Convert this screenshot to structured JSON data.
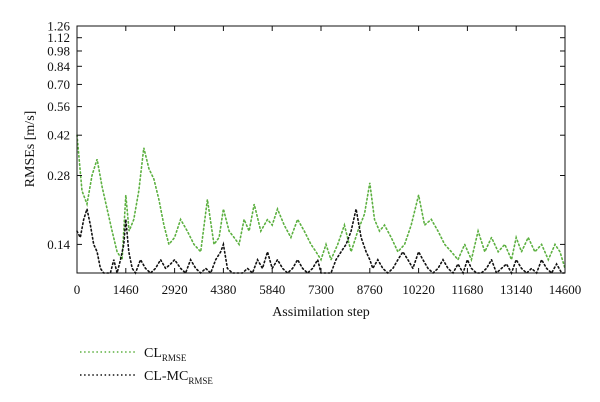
{
  "chart_data": {
    "type": "line",
    "title": "",
    "xlabel": "Assimilation step",
    "ylabel": "RMSEs [m/s]",
    "xlim": [
      0,
      14600
    ],
    "ylim": [
      0.105,
      1.26
    ],
    "yscale": "log",
    "x_ticks": [
      "0",
      "1460",
      "2920",
      "4380",
      "5840",
      "7300",
      "8760",
      "10220",
      "11680",
      "13140",
      "14600"
    ],
    "y_ticks": [
      "0.14",
      "0.28",
      "0.42",
      "0.56",
      "0.70",
      "0.84",
      "0.98",
      "1.12",
      "1.26"
    ],
    "grid": false,
    "legend_position": "bottom-left, below plot",
    "colors": {
      "cl": "#5cb040",
      "clmc": "#111111"
    },
    "series": [
      {
        "name": "CL",
        "subscript": "RMSE",
        "color": "#5cb040",
        "style": "dotted",
        "x": [
          0,
          150,
          300,
          450,
          600,
          750,
          900,
          1050,
          1200,
          1350,
          1460,
          1560,
          1700,
          1850,
          2000,
          2150,
          2300,
          2450,
          2600,
          2750,
          2920,
          3100,
          3300,
          3500,
          3700,
          3900,
          4100,
          4250,
          4380,
          4550,
          4700,
          4850,
          5000,
          5150,
          5300,
          5500,
          5700,
          5840,
          6000,
          6200,
          6400,
          6600,
          6800,
          7000,
          7150,
          7300,
          7450,
          7600,
          7800,
          8000,
          8200,
          8400,
          8600,
          8760,
          8900,
          9050,
          9200,
          9400,
          9600,
          9800,
          10000,
          10220,
          10400,
          10600,
          10800,
          11000,
          11200,
          11400,
          11600,
          11800,
          12000,
          12200,
          12400,
          12600,
          12800,
          13000,
          13140,
          13300,
          13500,
          13700,
          13900,
          14100,
          14300,
          14450,
          14600
        ],
        "values": [
          0.42,
          0.24,
          0.21,
          0.28,
          0.33,
          0.25,
          0.2,
          0.16,
          0.13,
          0.12,
          0.23,
          0.16,
          0.18,
          0.24,
          0.37,
          0.3,
          0.27,
          0.22,
          0.17,
          0.14,
          0.15,
          0.18,
          0.16,
          0.14,
          0.13,
          0.22,
          0.14,
          0.15,
          0.2,
          0.16,
          0.15,
          0.14,
          0.18,
          0.16,
          0.21,
          0.16,
          0.18,
          0.17,
          0.2,
          0.17,
          0.15,
          0.18,
          0.16,
          0.14,
          0.13,
          0.12,
          0.14,
          0.12,
          0.14,
          0.17,
          0.13,
          0.16,
          0.19,
          0.26,
          0.18,
          0.16,
          0.17,
          0.15,
          0.13,
          0.14,
          0.17,
          0.23,
          0.17,
          0.18,
          0.16,
          0.14,
          0.13,
          0.12,
          0.14,
          0.12,
          0.16,
          0.13,
          0.15,
          0.13,
          0.14,
          0.12,
          0.15,
          0.13,
          0.15,
          0.13,
          0.14,
          0.12,
          0.14,
          0.13,
          0.11
        ]
      },
      {
        "name": "CL-MC",
        "subscript": "RMSE",
        "color": "#111111",
        "style": "dotted",
        "x": [
          0,
          100,
          200,
          300,
          400,
          500,
          600,
          700,
          800,
          900,
          1000,
          1100,
          1200,
          1300,
          1400,
          1460,
          1550,
          1650,
          1750,
          1900,
          2050,
          2200,
          2350,
          2500,
          2650,
          2800,
          2920,
          3100,
          3250,
          3400,
          3550,
          3700,
          3850,
          4000,
          4150,
          4300,
          4380,
          4500,
          4650,
          4800,
          4950,
          5100,
          5250,
          5400,
          5550,
          5700,
          5840,
          6000,
          6150,
          6300,
          6450,
          6600,
          6750,
          6900,
          7050,
          7200,
          7300,
          7450,
          7600,
          7750,
          7900,
          8050,
          8200,
          8350,
          8500,
          8650,
          8760,
          8850,
          9000,
          9150,
          9300,
          9450,
          9600,
          9750,
          9900,
          10050,
          10220,
          10350,
          10500,
          10650,
          10800,
          10950,
          11100,
          11250,
          11400,
          11550,
          11680,
          11800,
          11950,
          12100,
          12250,
          12400,
          12550,
          12700,
          12850,
          13000,
          13140,
          13300,
          13450,
          13600,
          13750,
          13900,
          14050,
          14200,
          14350,
          14500,
          14600
        ],
        "values": [
          0.16,
          0.15,
          0.18,
          0.2,
          0.17,
          0.14,
          0.13,
          0.11,
          0.098,
          0.1,
          0.105,
          0.12,
          0.1,
          0.12,
          0.14,
          0.18,
          0.13,
          0.11,
          0.1,
          0.12,
          0.11,
          0.1,
          0.11,
          0.12,
          0.11,
          0.115,
          0.12,
          0.11,
          0.1,
          0.12,
          0.11,
          0.1,
          0.11,
          0.1,
          0.12,
          0.13,
          0.14,
          0.11,
          0.1,
          0.095,
          0.1,
          0.11,
          0.1,
          0.12,
          0.11,
          0.13,
          0.11,
          0.12,
          0.11,
          0.1,
          0.11,
          0.12,
          0.11,
          0.1,
          0.11,
          0.12,
          0.1,
          0.095,
          0.105,
          0.12,
          0.13,
          0.14,
          0.16,
          0.2,
          0.15,
          0.13,
          0.12,
          0.11,
          0.12,
          0.11,
          0.1,
          0.11,
          0.12,
          0.13,
          0.12,
          0.11,
          0.13,
          0.12,
          0.11,
          0.1,
          0.11,
          0.12,
          0.11,
          0.1,
          0.115,
          0.105,
          0.12,
          0.11,
          0.095,
          0.1,
          0.11,
          0.12,
          0.1,
          0.11,
          0.115,
          0.1,
          0.12,
          0.11,
          0.105,
          0.11,
          0.1,
          0.12,
          0.11,
          0.1,
          0.115,
          0.105,
          0.1
        ]
      }
    ]
  }
}
